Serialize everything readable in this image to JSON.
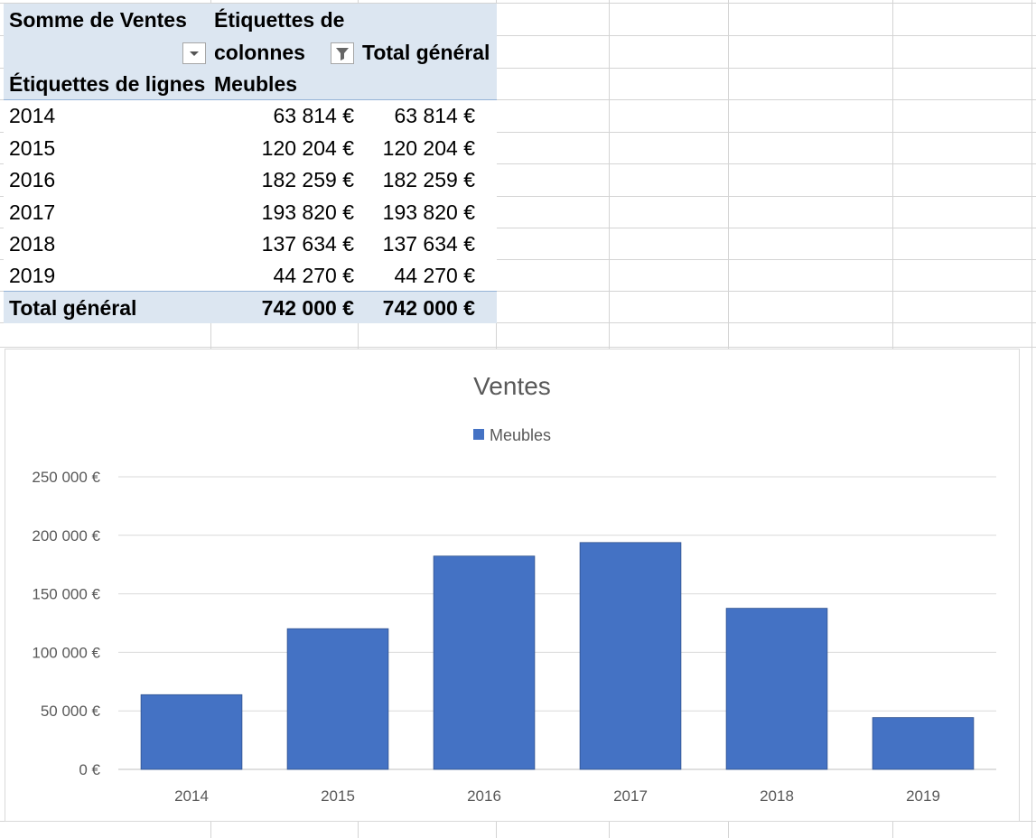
{
  "pivot": {
    "header": {
      "values_label": "Somme de Ventes",
      "column_labels_line1": "Étiquettes de",
      "column_labels_line2": "colonnes",
      "grand_total_header": "Total général",
      "row_labels": "Étiquettes de lignes",
      "column_value": "Meubles"
    },
    "rows": [
      {
        "year": "2014",
        "meubles": "63 814 €",
        "total": "63 814 €"
      },
      {
        "year": "2015",
        "meubles": "120 204 €",
        "total": "120 204 €"
      },
      {
        "year": "2016",
        "meubles": "182 259 €",
        "total": "182 259 €"
      },
      {
        "year": "2017",
        "meubles": "193 820 €",
        "total": "193 820 €"
      },
      {
        "year": "2018",
        "meubles": "137 634 €",
        "total": "137 634 €"
      },
      {
        "year": "2019",
        "meubles": "44 270 €",
        "total": "44 270 €"
      }
    ],
    "grand_total": {
      "label": "Total général",
      "meubles": "742 000 €",
      "total": "742 000 €"
    },
    "colors": {
      "header_fill": "#dce6f1",
      "border": "#95b3d7"
    }
  },
  "chart_data": {
    "type": "bar",
    "title": "Ventes",
    "categories": [
      "2014",
      "2015",
      "2016",
      "2017",
      "2018",
      "2019"
    ],
    "series": [
      {
        "name": "Meubles",
        "values": [
          63814,
          120204,
          182259,
          193820,
          137634,
          44270
        ],
        "color": "#4472c4"
      }
    ],
    "ylim": [
      0,
      250000
    ],
    "yticks": [
      0,
      50000,
      100000,
      150000,
      200000,
      250000
    ],
    "ytick_labels": [
      "0 €",
      "50 000 €",
      "100 000 €",
      "150 000 €",
      "200 000 €",
      "250 000 €"
    ],
    "legend_position": "top",
    "grid": true,
    "xlabel": "",
    "ylabel": ""
  }
}
